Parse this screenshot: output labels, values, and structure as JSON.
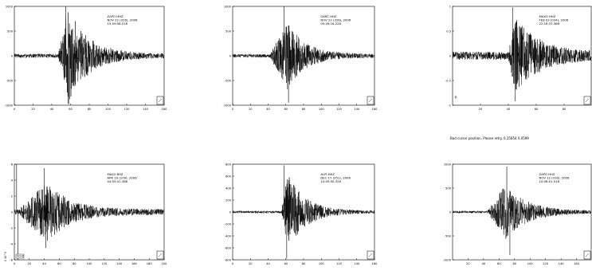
{
  "status_message": "Bad cursor position. Please retry. 0.15854 0.4599",
  "chart_data": [
    {
      "type": "line",
      "panel": "top-left",
      "info": [
        "ZAPO  HHZ",
        "NOV 22 (326), 2006",
        "15:59:58.518"
      ],
      "corner_mark": "",
      "xlim": [
        0,
        160
      ],
      "ylim": [
        -1000,
        1000
      ],
      "x_ticks": [
        0,
        20,
        40,
        60,
        80,
        100,
        120,
        140,
        160
      ],
      "y_ticks": [
        -1000,
        -500,
        0,
        500,
        1000
      ],
      "envelope": {
        "onset": 47,
        "peak": 57,
        "peak_amp": 950,
        "decay": 0.045,
        "noise": 40,
        "end": 160
      },
      "spikes": [
        {
          "x": 55,
          "y": 1000
        },
        {
          "x": 58,
          "y": -980
        }
      ],
      "legend": ""
    },
    {
      "type": "line",
      "panel": "top-middle",
      "info": [
        "GARC  HHZ",
        "NOV 22 (326), 2006",
        "05:49:16.228"
      ],
      "corner_mark": "",
      "xlim": [
        0,
        160
      ],
      "ylim": [
        -1000,
        1000
      ],
      "x_ticks": [
        0,
        20,
        40,
        60,
        80,
        100,
        120,
        140,
        160
      ],
      "y_ticks": [
        -1000,
        -500,
        0,
        500,
        1000
      ],
      "envelope": {
        "onset": 42,
        "peak": 62,
        "peak_amp": 650,
        "decay": 0.05,
        "noise": 35,
        "end": 160
      },
      "spikes": [
        {
          "x": 58,
          "y": 1000
        },
        {
          "x": 63,
          "y": -950
        }
      ],
      "legend": ""
    },
    {
      "type": "line",
      "panel": "top-right",
      "info": [
        "MAXO  HHZ",
        "FEB 03 (034), 2006",
        "22:18:37.368"
      ],
      "corner_mark": "P",
      "xlim": [
        0,
        100
      ],
      "ylim": [
        -1,
        1
      ],
      "x_ticks": [
        20,
        40,
        60,
        80
      ],
      "y_ticks": [
        -1,
        -0.5,
        0,
        0.5,
        1
      ],
      "envelope": {
        "onset": 40,
        "peak": 45,
        "peak_amp": 0.75,
        "decay": 0.06,
        "noise": 0.08,
        "end": 100
      },
      "spikes": [
        {
          "x": 43,
          "y": 0.98
        },
        {
          "x": 45,
          "y": -0.92
        }
      ],
      "legend": ""
    },
    {
      "type": "line",
      "panel": "bottom-left",
      "info": [
        "MA42  BHZ",
        "APR 19 (109), 2006",
        "04:55:41.388"
      ],
      "corner_mark": "",
      "xlim": [
        0,
        200
      ],
      "ylim": [
        -6000,
        6000
      ],
      "x_ticks": [
        0,
        20,
        40,
        60,
        80,
        100,
        120,
        140,
        160,
        180,
        200
      ],
      "y_ticks": [
        -6000,
        -4000,
        -2000,
        0,
        2000,
        4000,
        6000
      ],
      "envelope": {
        "onset": 5,
        "peak": 45,
        "peak_amp": 3500,
        "decay": 0.035,
        "noise": 350,
        "end": 200
      },
      "spikes": [
        {
          "x": 3,
          "y": 6000
        },
        {
          "x": 5,
          "y": -6000
        },
        {
          "x": 40,
          "y": 5500
        },
        {
          "x": 42,
          "y": -4500
        }
      ],
      "legend": "VCHZ",
      "axis_label": "X 10^3"
    },
    {
      "type": "line",
      "panel": "bottom-middle",
      "info": [
        "ALPI  HHZ",
        "DEC 17 (351), 2006",
        "10:05:50.328"
      ],
      "corner_mark": "",
      "xlim": [
        0,
        160
      ],
      "ylim": [
        -800,
        800
      ],
      "x_ticks": [
        0,
        20,
        40,
        60,
        80,
        100,
        120,
        140,
        160
      ],
      "y_ticks": [
        -800,
        -600,
        -400,
        -200,
        0,
        200,
        400,
        600,
        800
      ],
      "envelope": {
        "onset": 55,
        "peak": 62,
        "peak_amp": 620,
        "decay": 0.05,
        "noise": 20,
        "end": 160
      },
      "spikes": [
        {
          "x": 58,
          "y": 780
        },
        {
          "x": 61,
          "y": -780
        }
      ],
      "legend": ""
    },
    {
      "type": "line",
      "panel": "bottom-right",
      "info": [
        "ZAPO  HHZ",
        "NOV 12 (316), 2006",
        "10:08:01.518"
      ],
      "corner_mark": "",
      "xlim": [
        0,
        180
      ],
      "ylim": [
        -1000,
        1000
      ],
      "x_ticks": [
        20,
        40,
        60,
        80,
        100,
        120,
        140,
        160
      ],
      "y_ticks": [
        -1000,
        -500,
        0,
        500,
        1000
      ],
      "envelope": {
        "onset": 45,
        "peak": 68,
        "peak_amp": 550,
        "decay": 0.035,
        "noise": 25,
        "end": 180
      },
      "spikes": [
        {
          "x": 70,
          "y": 950
        },
        {
          "x": 74,
          "y": -900
        }
      ],
      "legend": ""
    }
  ]
}
